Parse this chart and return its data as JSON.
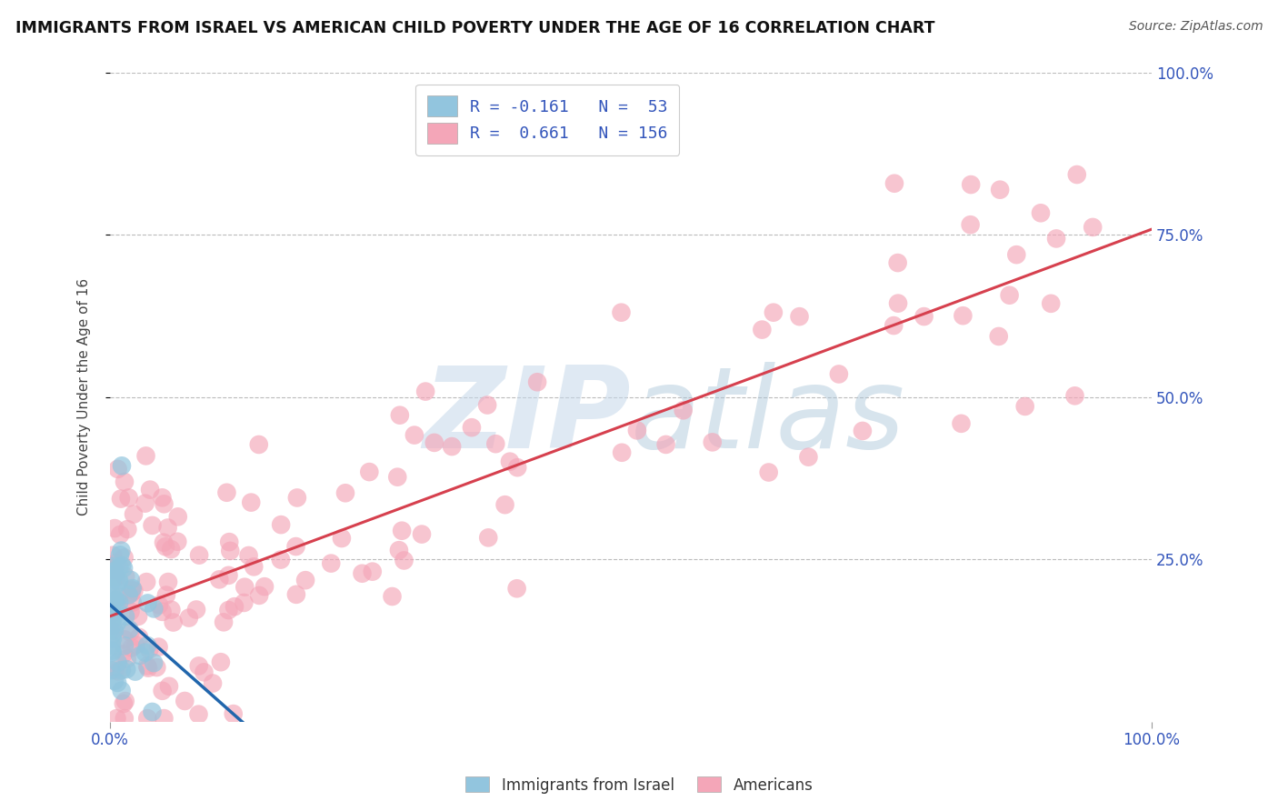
{
  "title": "IMMIGRANTS FROM ISRAEL VS AMERICAN CHILD POVERTY UNDER THE AGE OF 16 CORRELATION CHART",
  "source": "Source: ZipAtlas.com",
  "ylabel": "Child Poverty Under the Age of 16",
  "legend_label1": "Immigrants from Israel",
  "legend_label2": "Americans",
  "legend_r1": "R = -0.161",
  "legend_n1": "N =  53",
  "legend_r2": "R =  0.661",
  "legend_n2": "N = 156",
  "color_blue": "#92c5de",
  "color_pink": "#f4a6b8",
  "color_blue_line": "#2166ac",
  "color_pink_line": "#d6404e",
  "watermark_color": "#c5d8ea",
  "background_color": "#ffffff",
  "xlim": [
    0,
    1
  ],
  "ylim": [
    0,
    1
  ],
  "pink_intercept": 0.15,
  "pink_slope": 0.6,
  "blue_intercept": 0.175,
  "blue_slope": -1.5
}
